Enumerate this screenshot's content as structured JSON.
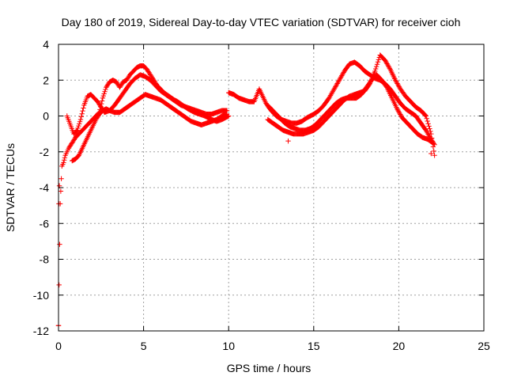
{
  "chart_data": {
    "type": "scatter",
    "title": "Day 180 of 2019, Sidereal Day-to-day VTEC variation (SDTVAR) for receiver cioh",
    "xlabel": "GPS time / hours",
    "ylabel": "SDTVAR / TECUs",
    "xlim": [
      0,
      25
    ],
    "ylim": [
      -12,
      4
    ],
    "xticks": [
      0,
      5,
      10,
      15,
      20,
      25
    ],
    "yticks": [
      -12,
      -10,
      -8,
      -6,
      -4,
      -2,
      0,
      2,
      4
    ],
    "grid": true,
    "marker": "+",
    "color": "#ff0000",
    "series": [
      {
        "name": "track-1",
        "x": [
          0.0,
          0.1,
          0.2,
          0.3,
          0.4,
          0.5,
          0.6,
          0.8,
          1.0,
          1.2,
          1.4,
          1.6,
          1.8,
          2.0,
          2.2,
          2.4,
          2.6,
          2.8,
          3.0,
          3.2,
          3.4,
          3.6,
          3.8,
          4.0,
          4.2,
          4.4,
          4.6,
          4.8,
          5.0,
          5.2,
          5.4,
          5.6,
          5.8,
          6.0,
          6.2,
          6.5,
          6.8,
          7.0,
          7.3,
          7.6,
          8.0,
          8.3,
          8.6,
          9.0,
          9.3,
          9.6,
          10.0
        ],
        "y": [
          -11.7,
          -4.9,
          -2.8,
          -2.6,
          -2.2,
          -2.0,
          -1.8,
          -1.5,
          -1.2,
          -1.0,
          -0.8,
          -0.6,
          -0.4,
          -0.2,
          0.0,
          0.2,
          1.0,
          1.6,
          1.9,
          2.0,
          1.9,
          1.6,
          1.9,
          2.0,
          2.3,
          2.5,
          2.7,
          2.8,
          2.8,
          2.6,
          2.3,
          2.0,
          1.7,
          1.5,
          1.3,
          1.1,
          0.9,
          0.8,
          0.6,
          0.4,
          0.2,
          0.1,
          0.0,
          -0.2,
          -0.3,
          -0.2,
          0.0
        ]
      },
      {
        "name": "track-2",
        "x": [
          0.5,
          0.7,
          0.9,
          1.1,
          1.3,
          1.5,
          1.7,
          1.9,
          2.1,
          2.3,
          2.5,
          2.7,
          3.0,
          3.3,
          3.6,
          3.9,
          4.2,
          4.5,
          4.8,
          5.1,
          5.4,
          5.7,
          6.0,
          6.3,
          6.6,
          6.9,
          7.2,
          7.5,
          7.8,
          8.1,
          8.4,
          8.7,
          9.0,
          9.3,
          9.6,
          9.9
        ],
        "y": [
          0.0,
          -0.5,
          -1.0,
          -0.8,
          -0.2,
          0.6,
          1.1,
          1.2,
          1.0,
          0.8,
          0.5,
          0.2,
          0.3,
          0.6,
          1.0,
          1.4,
          1.8,
          2.1,
          2.3,
          2.2,
          2.0,
          1.7,
          1.4,
          1.2,
          1.0,
          0.8,
          0.6,
          0.5,
          0.4,
          0.3,
          0.2,
          0.1,
          0.1,
          0.2,
          0.3,
          0.3
        ]
      },
      {
        "name": "track-3",
        "x": [
          0.8,
          1.0,
          1.2,
          1.4,
          1.6,
          1.8,
          2.0,
          2.2,
          2.4,
          2.6,
          2.8,
          3.0,
          3.3,
          3.6,
          3.9,
          4.2,
          4.5,
          4.8,
          5.1,
          5.4,
          5.7,
          6.0,
          6.3,
          6.6,
          6.9,
          7.2,
          7.5,
          7.8,
          8.1,
          8.4,
          8.7,
          9.0,
          9.3,
          9.6,
          9.9
        ],
        "y": [
          -2.5,
          -2.4,
          -2.2,
          -1.8,
          -1.4,
          -1.0,
          -0.6,
          -0.2,
          0.1,
          0.3,
          0.4,
          0.3,
          0.2,
          0.2,
          0.4,
          0.6,
          0.8,
          1.0,
          1.2,
          1.1,
          1.0,
          0.9,
          0.7,
          0.5,
          0.3,
          0.1,
          -0.1,
          -0.3,
          -0.4,
          -0.5,
          -0.4,
          -0.3,
          -0.2,
          0.0,
          0.1
        ]
      },
      {
        "name": "track-4",
        "x": [
          10.0,
          10.3,
          10.6,
          10.9,
          11.2,
          11.5,
          11.8,
          12.2,
          12.5,
          12.8,
          13.1,
          13.4,
          13.7,
          14.0,
          14.3,
          14.6,
          15.0,
          15.3,
          15.6,
          15.9,
          16.2,
          16.5,
          16.8,
          17.1,
          17.4,
          17.7,
          18.0,
          18.3,
          18.6,
          18.9,
          19.2,
          19.5,
          19.8,
          20.1,
          20.4,
          20.7,
          21.0,
          21.3,
          21.6,
          21.9,
          22.1
        ],
        "y": [
          1.3,
          1.2,
          1.0,
          0.9,
          0.8,
          0.8,
          1.5,
          0.7,
          0.3,
          0.0,
          -0.2,
          -0.3,
          -0.4,
          -0.4,
          -0.3,
          -0.1,
          0.1,
          0.3,
          0.6,
          1.0,
          1.5,
          2.0,
          2.5,
          2.9,
          3.0,
          2.8,
          2.5,
          2.3,
          2.1,
          2.0,
          1.8,
          1.5,
          1.1,
          0.7,
          0.4,
          0.2,
          0.0,
          -0.4,
          -0.8,
          -1.3,
          -1.6
        ]
      },
      {
        "name": "track-5",
        "x": [
          12.3,
          12.6,
          12.9,
          13.2,
          13.5,
          13.8,
          14.1,
          14.4,
          14.7,
          15.0,
          15.3,
          15.6,
          15.9,
          16.2,
          16.5,
          16.8,
          17.1,
          17.4,
          17.7,
          18.0,
          18.3,
          18.6,
          18.9,
          19.2,
          19.5,
          19.8,
          20.1,
          20.4,
          20.7,
          21.0,
          21.3,
          21.6,
          21.9,
          22.1
        ],
        "y": [
          -0.2,
          -0.4,
          -0.6,
          -0.8,
          -0.9,
          -1.0,
          -1.0,
          -1.0,
          -0.9,
          -0.8,
          -0.6,
          -0.3,
          0.0,
          0.3,
          0.6,
          0.9,
          1.1,
          1.2,
          1.3,
          1.4,
          1.8,
          2.5,
          3.4,
          3.1,
          2.6,
          2.0,
          1.5,
          1.1,
          0.8,
          0.5,
          0.3,
          0.0,
          -1.0,
          -2.2
        ]
      },
      {
        "name": "track-6",
        "x": [
          12.4,
          12.7,
          13.0,
          13.3,
          13.6,
          13.9,
          14.2,
          14.5,
          14.8,
          15.1,
          15.4,
          15.7,
          16.0,
          16.3,
          16.6,
          16.9,
          17.2,
          17.5,
          17.8,
          18.1,
          18.4,
          18.7,
          19.0,
          19.3,
          19.6,
          19.9,
          20.2,
          20.5,
          20.8,
          21.1,
          21.4,
          21.7,
          22.0
        ],
        "y": [
          0.5,
          0.2,
          -0.1,
          -0.4,
          -0.6,
          -0.7,
          -0.8,
          -0.8,
          -0.7,
          -0.5,
          -0.2,
          0.1,
          0.4,
          0.7,
          0.9,
          1.0,
          1.0,
          1.0,
          1.2,
          1.6,
          2.0,
          2.3,
          2.0,
          1.6,
          1.0,
          0.4,
          -0.1,
          -0.4,
          -0.7,
          -1.0,
          -1.2,
          -1.3,
          -1.5
        ]
      },
      {
        "name": "outliers",
        "x": [
          0.0,
          0.05,
          0.02,
          11.8,
          13.5,
          21.9
        ],
        "y": [
          -11.7,
          -3.9,
          -4.9,
          1.5,
          -1.4,
          -2.1
        ]
      }
    ]
  }
}
